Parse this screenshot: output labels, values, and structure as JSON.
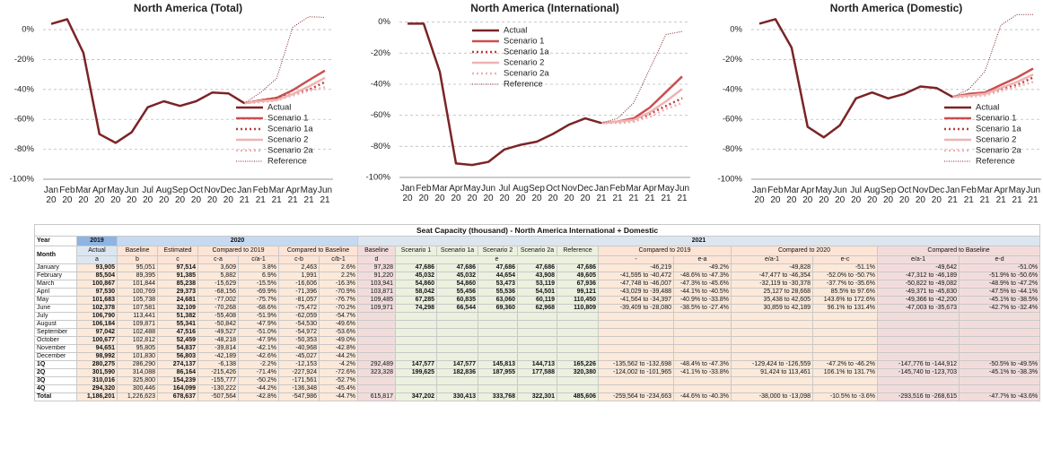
{
  "chart_data": [
    {
      "type": "line",
      "title": "North America (Total)",
      "legend": "lower right",
      "categories": [
        "Jan 20",
        "Feb 20",
        "Mar 20",
        "Apr 20",
        "May 20",
        "Jun 20",
        "Jul 20",
        "Aug 20",
        "Sep 20",
        "Oct 20",
        "Nov 20",
        "Dec 20",
        "Jan 21",
        "Feb 21",
        "Mar 21",
        "Apr 21",
        "May 21",
        "Jun 21"
      ],
      "ylim": [
        -100,
        15
      ],
      "yticks": [
        {
          "value": 0,
          "label": "0%"
        },
        {
          "value": -20,
          "label": "-20%"
        },
        {
          "value": -40,
          "label": "-40%"
        },
        {
          "value": -60,
          "label": "-60%"
        },
        {
          "value": -80,
          "label": "-80%"
        },
        {
          "value": -100,
          "label": "-100%"
        }
      ],
      "grid": true,
      "series": [
        {
          "name": "Actual",
          "color": "#7b2426",
          "style": "solid",
          "values": [
            3.8,
            6.9,
            -15.5,
            -69.9,
            -75.7,
            -68.6,
            -51.9,
            -47.9,
            -51.0,
            -47.9,
            -42.1,
            -42.6,
            -49.2,
            null,
            null,
            null,
            null,
            null
          ]
        },
        {
          "name": "Scenario 1",
          "color": "#c9504f",
          "style": "solid",
          "values": [
            null,
            null,
            null,
            null,
            null,
            null,
            null,
            null,
            null,
            null,
            null,
            null,
            -49.2,
            -47.3,
            -45.6,
            -40.5,
            -33.8,
            -27.4
          ]
        },
        {
          "name": "Scenario 1a",
          "color": "#b8403f",
          "style": "dotted",
          "values": [
            null,
            null,
            null,
            null,
            null,
            null,
            null,
            null,
            null,
            null,
            null,
            null,
            -49.2,
            -47.3,
            -45.6,
            -43.1,
            -40.2,
            -35.0
          ]
        },
        {
          "name": "Scenario 2",
          "color": "#f0b2b2",
          "style": "solid",
          "values": [
            null,
            null,
            null,
            null,
            null,
            null,
            null,
            null,
            null,
            null,
            null,
            null,
            -49.2,
            -47.8,
            -47.0,
            -43.1,
            -38.0,
            -32.2
          ]
        },
        {
          "name": "Scenario 2a",
          "color": "#f0b2b2",
          "style": "dotted",
          "values": [
            null,
            null,
            null,
            null,
            null,
            null,
            null,
            null,
            null,
            null,
            null,
            null,
            -49.2,
            -48.6,
            -47.3,
            -44.1,
            -40.9,
            -38.5
          ]
        },
        {
          "name": "Reference",
          "color": "#7b2426",
          "style": "fine-dotted",
          "values": [
            null,
            null,
            null,
            null,
            null,
            null,
            null,
            null,
            null,
            null,
            null,
            null,
            -49.2,
            -42.0,
            -32.6,
            1.6,
            8.6,
            8.2
          ]
        }
      ]
    },
    {
      "type": "line",
      "title": "North America (International)",
      "legend": "upper center",
      "categories": [
        "Jan 20",
        "Feb 20",
        "Mar 20",
        "Apr 20",
        "May 20",
        "Jun 20",
        "Jul 20",
        "Aug 20",
        "Sep 20",
        "Oct 20",
        "Nov 20",
        "Dec 20",
        "Jan 21",
        "Feb 21",
        "Mar 21",
        "Apr 21",
        "May 21",
        "Jun 21"
      ],
      "ylim": [
        -100,
        5
      ],
      "yticks": [
        {
          "value": 0,
          "label": "0%"
        },
        {
          "value": -20,
          "label": "-20%"
        },
        {
          "value": -40,
          "label": "-40%"
        },
        {
          "value": -60,
          "label": "-60%"
        },
        {
          "value": -80,
          "label": "-80%"
        },
        {
          "value": -100,
          "label": "-100%"
        }
      ],
      "grid": true,
      "series": [
        {
          "name": "Actual",
          "color": "#7b2426",
          "style": "solid",
          "values": [
            -1,
            -1,
            -32,
            -91,
            -92,
            -90,
            -82,
            -79,
            -77,
            -72,
            -66,
            -62,
            -65,
            null,
            null,
            null,
            null,
            null
          ]
        },
        {
          "name": "Scenario 1",
          "color": "#c9504f",
          "style": "solid",
          "values": [
            null,
            null,
            null,
            null,
            null,
            null,
            null,
            null,
            null,
            null,
            null,
            null,
            -65,
            -64,
            -62,
            -55,
            -45,
            -35
          ]
        },
        {
          "name": "Scenario 1a",
          "color": "#b8403f",
          "style": "dotted",
          "values": [
            null,
            null,
            null,
            null,
            null,
            null,
            null,
            null,
            null,
            null,
            null,
            null,
            -65,
            -65,
            -64,
            -59,
            -54,
            -49
          ]
        },
        {
          "name": "Scenario 2",
          "color": "#f0b2b2",
          "style": "solid",
          "values": [
            null,
            null,
            null,
            null,
            null,
            null,
            null,
            null,
            null,
            null,
            null,
            null,
            -65,
            -64,
            -63,
            -58,
            -51,
            -43
          ]
        },
        {
          "name": "Scenario 2a",
          "color": "#f0b2b2",
          "style": "dotted",
          "values": [
            null,
            null,
            null,
            null,
            null,
            null,
            null,
            null,
            null,
            null,
            null,
            null,
            -65,
            -65,
            -64,
            -61,
            -56,
            -52
          ]
        },
        {
          "name": "Reference",
          "color": "#7b2426",
          "style": "fine-dotted",
          "values": [
            null,
            null,
            null,
            null,
            null,
            null,
            null,
            null,
            null,
            null,
            null,
            null,
            -65,
            -62,
            -52,
            -30,
            -8,
            -6
          ]
        }
      ]
    },
    {
      "type": "line",
      "title": "North America (Domestic)",
      "legend": "lower right",
      "categories": [
        "Jan 20",
        "Feb 20",
        "Mar 20",
        "Apr 20",
        "May 20",
        "Jun 20",
        "Jul 20",
        "Aug 20",
        "Sep 20",
        "Oct 20",
        "Nov 20",
        "Dec 20",
        "Jan 21",
        "Feb 21",
        "Mar 21",
        "Apr 21",
        "May 21",
        "Jun 21"
      ],
      "ylim": [
        -100,
        15
      ],
      "yticks": [
        {
          "value": 0,
          "label": "0%"
        },
        {
          "value": -20,
          "label": "-20%"
        },
        {
          "value": -40,
          "label": "-40%"
        },
        {
          "value": -60,
          "label": "-60%"
        },
        {
          "value": -80,
          "label": "-80%"
        },
        {
          "value": -100,
          "label": "-100%"
        }
      ],
      "grid": true,
      "series": [
        {
          "name": "Actual",
          "color": "#7b2426",
          "style": "solid",
          "values": [
            4,
            7,
            -12,
            -65,
            -72,
            -64,
            -46,
            -42,
            -46,
            -43,
            -38,
            -39,
            -45,
            null,
            null,
            null,
            null,
            null
          ]
        },
        {
          "name": "Scenario 1",
          "color": "#c9504f",
          "style": "solid",
          "values": [
            null,
            null,
            null,
            null,
            null,
            null,
            null,
            null,
            null,
            null,
            null,
            null,
            -45,
            -43,
            -42,
            -37,
            -32,
            -26
          ]
        },
        {
          "name": "Scenario 1a",
          "color": "#b8403f",
          "style": "dotted",
          "values": [
            null,
            null,
            null,
            null,
            null,
            null,
            null,
            null,
            null,
            null,
            null,
            null,
            -45,
            -44,
            -43,
            -40,
            -37,
            -32
          ]
        },
        {
          "name": "Scenario 2",
          "color": "#f0b2b2",
          "style": "solid",
          "values": [
            null,
            null,
            null,
            null,
            null,
            null,
            null,
            null,
            null,
            null,
            null,
            null,
            -45,
            -44,
            -43,
            -39,
            -35,
            -30
          ]
        },
        {
          "name": "Scenario 2a",
          "color": "#f0b2b2",
          "style": "dotted",
          "values": [
            null,
            null,
            null,
            null,
            null,
            null,
            null,
            null,
            null,
            null,
            null,
            null,
            -45,
            -45,
            -44,
            -41,
            -38,
            -35
          ]
        },
        {
          "name": "Reference",
          "color": "#7b2426",
          "style": "fine-dotted",
          "values": [
            null,
            null,
            null,
            null,
            null,
            null,
            null,
            null,
            null,
            null,
            null,
            null,
            -45,
            -40,
            -28,
            3,
            10,
            10
          ]
        }
      ]
    }
  ],
  "table": {
    "title": "Seat Capacity (thousand) - North America International + Domestic",
    "header": {
      "year": [
        "Year",
        "2019",
        "2020",
        "2021"
      ],
      "groups": [
        "Month",
        "Actual",
        "Baseline",
        "Estimated",
        "Compared to 2019",
        "Compared to Baseline",
        "Baseline",
        "Scenario 1",
        "Scenario 1a",
        "Scenario 2",
        "Scenario 2a",
        "Reference",
        "Compared to 2019",
        "Compared to 2020",
        "Compared to Baseline"
      ],
      "codes": [
        "a",
        "b",
        "c",
        "c-a",
        "c/a-1",
        "c-b",
        "c/b-1",
        "d",
        "e",
        "-",
        "e-a",
        "e/a-1",
        "e-c",
        "e/a-1",
        "e-d",
        "e/d-1"
      ]
    },
    "rows": [
      [
        "January",
        "93,905",
        "95,051",
        "97,514",
        "3,609",
        "3.8%",
        "2,463",
        "2.6%",
        "97,328",
        "47,686",
        "47,686",
        "47,686",
        "47,686",
        "47,686",
        "-46,219",
        "-49.2%",
        "-49,828",
        "-51.1%",
        "-49,642",
        "-51.0%"
      ],
      [
        "February",
        "85,504",
        "89,395",
        "91,385",
        "5,882",
        "6.9%",
        "1,991",
        "2.2%",
        "91,220",
        "45,032",
        "45,032",
        "44,654",
        "43,908",
        "49,605",
        "-41,595 to -40,472",
        "-48.6% to -47.3%",
        "-47,477 to -46,354",
        "-52.0% to -50.7%",
        "-47,312 to -46,189",
        "-51.9% to -50.6%"
      ],
      [
        "March",
        "100,867",
        "101,844",
        "85,238",
        "-15,629",
        "-15.5%",
        "-16,606",
        "-16.3%",
        "103,941",
        "54,860",
        "54,860",
        "53,473",
        "53,119",
        "67,936",
        "-47,748 to -46,007",
        "-47.3% to -45.6%",
        "-32,119 to -30,378",
        "-37.7% to -35.6%",
        "-50,822 to -49,082",
        "-48.9% to -47.2%"
      ],
      [
        "April",
        "97,530",
        "100,769",
        "29,373",
        "-68,156",
        "-69.9%",
        "-71,396",
        "-70.9%",
        "103,871",
        "58,042",
        "55,456",
        "55,536",
        "54,501",
        "99,121",
        "-43,029 to -39,488",
        "-44.1% to -40.5%",
        "25,127 to 28,668",
        "85.5% to 97.6%",
        "-49,371 to -45,830",
        "-47.5% to -44.1%"
      ],
      [
        "May",
        "101,683",
        "105,738",
        "24,681",
        "-77,002",
        "-75.7%",
        "-81,057",
        "-76.7%",
        "109,485",
        "67,285",
        "60,835",
        "63,060",
        "60,119",
        "110,450",
        "-41,564 to -34,397",
        "-40.9% to -33.8%",
        "35,438 to 42,605",
        "143.6% to 172.6%",
        "-49,366 to -42,200",
        "-45.1% to -38.5%"
      ],
      [
        "June",
        "102,378",
        "107,581",
        "32,109",
        "-70,268",
        "-68.6%",
        "-75,472",
        "-70.2%",
        "109,971",
        "74,298",
        "66,544",
        "69,360",
        "62,968",
        "110,809",
        "-39,409 to -28,080",
        "-38.5% to -27.4%",
        "30,859 to 42,189",
        "96.1% to 131.4%",
        "-47,003 to -35,673",
        "-42.7% to -32.4%"
      ],
      [
        "July",
        "106,790",
        "113,441",
        "51,382",
        "-55,408",
        "-51.9%",
        "-62,059",
        "-54.7%"
      ],
      [
        "August",
        "106,184",
        "109,871",
        "55,341",
        "-50,842",
        "-47.9%",
        "-54,530",
        "-49.6%"
      ],
      [
        "September",
        "97,042",
        "102,488",
        "47,516",
        "-49,527",
        "-51.0%",
        "-54,972",
        "-53.6%"
      ],
      [
        "October",
        "100,677",
        "102,812",
        "52,459",
        "-48,218",
        "-47.9%",
        "-50,353",
        "-49.0%"
      ],
      [
        "November",
        "94,651",
        "95,805",
        "54,837",
        "-39,814",
        "-42.1%",
        "-40,968",
        "-42.8%"
      ],
      [
        "December",
        "98,992",
        "101,830",
        "56,803",
        "-42,189",
        "-42.6%",
        "-45,027",
        "-44.2%"
      ],
      [
        "1Q",
        "280,275",
        "286,290",
        "274,137",
        "-6,138",
        "-2.2%",
        "-12,153",
        "-4.2%",
        "292,489",
        "147,577",
        "147,577",
        "145,813",
        "144,713",
        "165,226",
        "-135,562 to -132,698",
        "-48.4% to -47.3%",
        "-129,424 to -126,559",
        "-47.2% to -46.2%",
        "-147,776 to -144,912",
        "-50.5% to -49.5%"
      ],
      [
        "2Q",
        "301,590",
        "314,088",
        "86,164",
        "-215,426",
        "-71.4%",
        "-227,924",
        "-72.6%",
        "323,328",
        "199,625",
        "182,836",
        "187,955",
        "177,588",
        "320,380",
        "-124,002 to -101,965",
        "-41.1% to -33.8%",
        "91,424 to 113,461",
        "106.1% to 131.7%",
        "-145,740 to -123,703",
        "-45.1% to -38.3%"
      ],
      [
        "3Q",
        "310,016",
        "325,800",
        "154,239",
        "-155,777",
        "-50.2%",
        "-171,561",
        "-52.7%"
      ],
      [
        "4Q",
        "294,320",
        "300,446",
        "164,099",
        "-130,222",
        "-44.2%",
        "-136,348",
        "-45.4%"
      ],
      [
        "Total",
        "1,186,201",
        "1,226,623",
        "678,637",
        "-507,564",
        "-42.8%",
        "-547,986",
        "-44.7%",
        "615,817",
        "347,202",
        "330,413",
        "333,768",
        "322,301",
        "485,606",
        "-259,564 to -234,663",
        "-44.6% to -40.3%",
        "-38,000 to -13,098",
        "-10.5% to -3.6%",
        "-293,516 to -268,615",
        "-47.7% to -43.6%"
      ]
    ]
  }
}
